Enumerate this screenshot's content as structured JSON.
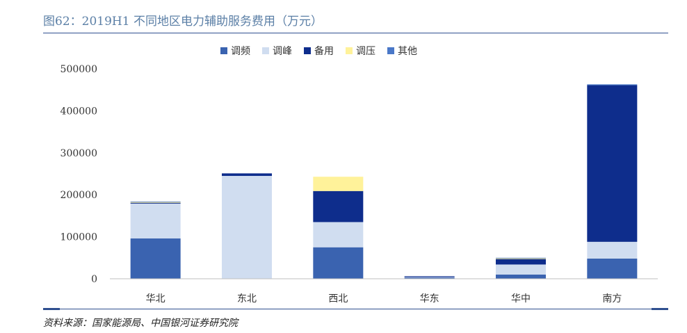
{
  "title": "图62：2019H1 不同地区电力辅助服务费用（万元）",
  "source": "资料来源：国家能源局、中国银河证券研究院",
  "chart_data": {
    "type": "bar",
    "stacked": true,
    "categories": [
      "华北",
      "东北",
      "西北",
      "华东",
      "华中",
      "南方"
    ],
    "ylim": [
      0,
      500000
    ],
    "yticks": [
      0,
      100000,
      200000,
      300000,
      400000,
      500000
    ],
    "legend_position": "top",
    "grid": false,
    "series": [
      {
        "name": "调频",
        "color": "#3a63b0",
        "values": [
          96000,
          0,
          75000,
          3000,
          10000,
          48000
        ]
      },
      {
        "name": "调峰",
        "color": "#d0ddf0",
        "values": [
          83000,
          245000,
          60000,
          1000,
          24000,
          40000
        ]
      },
      {
        "name": "备用",
        "color": "#0e2d8c",
        "values": [
          2000,
          6000,
          74000,
          2000,
          13000,
          373000
        ]
      },
      {
        "name": "调压",
        "color": "#fff29a",
        "values": [
          2000,
          0,
          34000,
          0,
          2000,
          0
        ]
      },
      {
        "name": "其他",
        "color": "#4a78c8",
        "values": [
          1000,
          0,
          0,
          0,
          1000,
          2000
        ]
      }
    ]
  }
}
